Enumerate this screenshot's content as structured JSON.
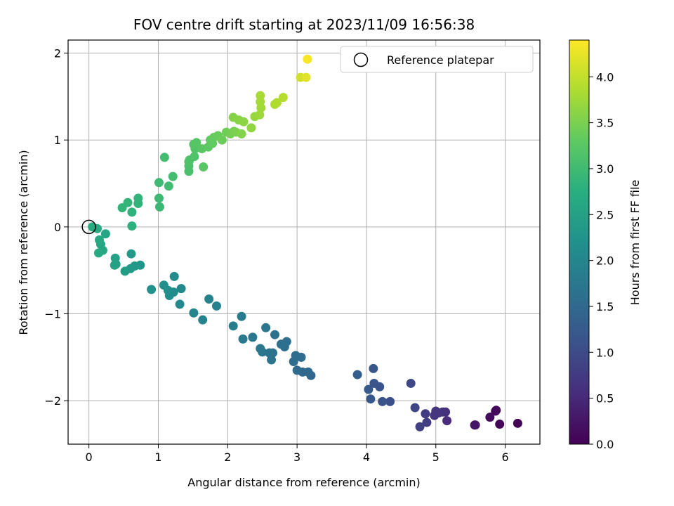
{
  "chart_data": {
    "type": "scatter",
    "title": "FOV centre drift starting at 2023/11/09 16:56:38",
    "xlabel": "Angular distance from reference (arcmin)",
    "ylabel": "Rotation from reference (arcmin)",
    "xlim": [
      -0.3,
      6.5
    ],
    "ylim": [
      -2.5,
      2.15
    ],
    "xticks": [
      0,
      1,
      2,
      3,
      4,
      5,
      6
    ],
    "yticks": [
      -2,
      -1,
      0,
      1,
      2
    ],
    "xtick_labels": [
      "0",
      "1",
      "2",
      "3",
      "4",
      "5",
      "6"
    ],
    "ytick_labels": [
      "−2",
      "−1",
      "0",
      "1",
      "2"
    ],
    "grid": true,
    "legend": {
      "position": "top-right",
      "entries": [
        "Reference platepar"
      ]
    },
    "reference_point": {
      "x": 0.0,
      "y": 0.0
    },
    "colorbar": {
      "label": "Hours from first FF file",
      "range": [
        0,
        4.4
      ],
      "ticks": [
        0,
        0.5,
        1,
        1.5,
        2,
        2.5,
        3,
        3.5,
        4
      ],
      "tick_labels": [
        "0.0",
        "0.5",
        "1.0",
        "1.5",
        "2.0",
        "2.5",
        "3.0",
        "3.5",
        "4.0"
      ],
      "colormap": "viridis"
    },
    "points": [
      {
        "x": 6.18,
        "y": -2.26,
        "c": 0.02
      },
      {
        "x": 5.92,
        "y": -2.27,
        "c": 0.05
      },
      {
        "x": 5.87,
        "y": -2.11,
        "c": 0.08
      },
      {
        "x": 5.86,
        "y": -2.12,
        "c": 0.1
      },
      {
        "x": 5.78,
        "y": -2.19,
        "c": 0.14
      },
      {
        "x": 5.56,
        "y": -2.28,
        "c": 0.22
      },
      {
        "x": 5.57,
        "y": -2.28,
        "c": 0.26
      },
      {
        "x": 5.16,
        "y": -2.23,
        "c": 0.55
      },
      {
        "x": 5.14,
        "y": -2.13,
        "c": 0.6
      },
      {
        "x": 5.1,
        "y": -2.13,
        "c": 0.62
      },
      {
        "x": 5.04,
        "y": -2.14,
        "c": 0.66
      },
      {
        "x": 5.0,
        "y": -2.12,
        "c": 0.68
      },
      {
        "x": 4.98,
        "y": -2.17,
        "c": 0.7
      },
      {
        "x": 4.85,
        "y": -2.15,
        "c": 0.78
      },
      {
        "x": 4.87,
        "y": -2.25,
        "c": 0.8
      },
      {
        "x": 4.77,
        "y": -2.3,
        "c": 0.84
      },
      {
        "x": 4.7,
        "y": -2.08,
        "c": 0.9
      },
      {
        "x": 4.64,
        "y": -1.8,
        "c": 0.95
      },
      {
        "x": 4.34,
        "y": -2.01,
        "c": 1.05
      },
      {
        "x": 4.23,
        "y": -2.01,
        "c": 1.1
      },
      {
        "x": 4.19,
        "y": -1.84,
        "c": 1.12
      },
      {
        "x": 4.11,
        "y": -1.8,
        "c": 1.15
      },
      {
        "x": 4.1,
        "y": -1.63,
        "c": 1.17
      },
      {
        "x": 4.06,
        "y": -1.98,
        "c": 1.2
      },
      {
        "x": 4.03,
        "y": -1.87,
        "c": 1.22
      },
      {
        "x": 3.87,
        "y": -1.7,
        "c": 1.3
      },
      {
        "x": 3.2,
        "y": -1.71,
        "c": 1.45
      },
      {
        "x": 3.16,
        "y": -1.67,
        "c": 1.47
      },
      {
        "x": 3.08,
        "y": -1.67,
        "c": 1.5
      },
      {
        "x": 3.0,
        "y": -1.65,
        "c": 1.52
      },
      {
        "x": 3.06,
        "y": -1.5,
        "c": 1.54
      },
      {
        "x": 2.98,
        "y": -1.48,
        "c": 1.55
      },
      {
        "x": 2.95,
        "y": -1.55,
        "c": 1.56
      },
      {
        "x": 2.85,
        "y": -1.32,
        "c": 1.58
      },
      {
        "x": 2.82,
        "y": -1.38,
        "c": 1.6
      },
      {
        "x": 2.77,
        "y": -1.35,
        "c": 1.62
      },
      {
        "x": 2.68,
        "y": -1.24,
        "c": 1.63
      },
      {
        "x": 2.65,
        "y": -1.45,
        "c": 1.65
      },
      {
        "x": 2.63,
        "y": -1.53,
        "c": 1.66
      },
      {
        "x": 2.6,
        "y": -1.45,
        "c": 1.67
      },
      {
        "x": 2.55,
        "y": -1.16,
        "c": 1.7
      },
      {
        "x": 2.5,
        "y": -1.44,
        "c": 1.72
      },
      {
        "x": 2.47,
        "y": -1.4,
        "c": 1.73
      },
      {
        "x": 2.36,
        "y": -1.27,
        "c": 1.76
      },
      {
        "x": 2.22,
        "y": -1.29,
        "c": 1.8
      },
      {
        "x": 2.2,
        "y": -1.03,
        "c": 1.82
      },
      {
        "x": 2.08,
        "y": -1.14,
        "c": 1.85
      },
      {
        "x": 1.84,
        "y": -0.91,
        "c": 1.9
      },
      {
        "x": 1.73,
        "y": -0.83,
        "c": 1.93
      },
      {
        "x": 1.64,
        "y": -1.07,
        "c": 1.96
      },
      {
        "x": 1.51,
        "y": -0.99,
        "c": 2.0
      },
      {
        "x": 1.33,
        "y": -0.71,
        "c": 2.05
      },
      {
        "x": 1.31,
        "y": -0.89,
        "c": 2.06
      },
      {
        "x": 1.23,
        "y": -0.57,
        "c": 2.1
      },
      {
        "x": 1.22,
        "y": -0.75,
        "c": 2.12
      },
      {
        "x": 1.16,
        "y": -0.79,
        "c": 2.14
      },
      {
        "x": 1.14,
        "y": -0.73,
        "c": 2.16
      },
      {
        "x": 1.08,
        "y": -0.67,
        "c": 2.18
      },
      {
        "x": 0.9,
        "y": -0.72,
        "c": 2.22
      },
      {
        "x": 0.74,
        "y": -0.44,
        "c": 2.3
      },
      {
        "x": 0.66,
        "y": -0.45,
        "c": 2.33
      },
      {
        "x": 0.6,
        "y": -0.48,
        "c": 2.36
      },
      {
        "x": 0.61,
        "y": -0.31,
        "c": 2.38
      },
      {
        "x": 0.52,
        "y": -0.51,
        "c": 2.42
      },
      {
        "x": 0.39,
        "y": -0.43,
        "c": 2.5
      },
      {
        "x": 0.38,
        "y": -0.36,
        "c": 2.52
      },
      {
        "x": 0.37,
        "y": -0.44,
        "c": 2.53
      },
      {
        "x": 0.24,
        "y": -0.08,
        "c": 2.58
      },
      {
        "x": 0.2,
        "y": -0.27,
        "c": 2.6
      },
      {
        "x": 0.17,
        "y": -0.2,
        "c": 2.62
      },
      {
        "x": 0.15,
        "y": -0.15,
        "c": 2.64
      },
      {
        "x": 0.14,
        "y": -0.3,
        "c": 2.65
      },
      {
        "x": 0.12,
        "y": -0.02,
        "c": 2.67
      },
      {
        "x": 0.05,
        "y": 0.0,
        "c": 2.7
      },
      {
        "x": 0.62,
        "y": 0.01,
        "c": 2.8
      },
      {
        "x": 0.62,
        "y": 0.17,
        "c": 2.82
      },
      {
        "x": 0.71,
        "y": 0.27,
        "c": 2.84
      },
      {
        "x": 0.71,
        "y": 0.33,
        "c": 2.85
      },
      {
        "x": 0.56,
        "y": 0.28,
        "c": 2.87
      },
      {
        "x": 0.48,
        "y": 0.22,
        "c": 2.88
      },
      {
        "x": 1.02,
        "y": 0.23,
        "c": 2.95
      },
      {
        "x": 1.01,
        "y": 0.33,
        "c": 2.97
      },
      {
        "x": 1.01,
        "y": 0.51,
        "c": 2.98
      },
      {
        "x": 1.15,
        "y": 0.47,
        "c": 3.0
      },
      {
        "x": 1.21,
        "y": 0.58,
        "c": 3.02
      },
      {
        "x": 1.09,
        "y": 0.8,
        "c": 3.04
      },
      {
        "x": 1.44,
        "y": 0.64,
        "c": 3.1
      },
      {
        "x": 1.44,
        "y": 0.7,
        "c": 3.12
      },
      {
        "x": 1.44,
        "y": 0.75,
        "c": 3.13
      },
      {
        "x": 1.45,
        "y": 0.77,
        "c": 3.14
      },
      {
        "x": 1.52,
        "y": 0.81,
        "c": 3.16
      },
      {
        "x": 1.53,
        "y": 0.9,
        "c": 3.18
      },
      {
        "x": 1.51,
        "y": 0.95,
        "c": 3.2
      },
      {
        "x": 1.55,
        "y": 0.97,
        "c": 3.22
      },
      {
        "x": 1.65,
        "y": 0.69,
        "c": 3.24
      },
      {
        "x": 1.63,
        "y": 0.9,
        "c": 3.26
      },
      {
        "x": 1.72,
        "y": 0.92,
        "c": 3.28
      },
      {
        "x": 1.75,
        "y": 1.0,
        "c": 3.3
      },
      {
        "x": 1.78,
        "y": 0.96,
        "c": 3.32
      },
      {
        "x": 1.8,
        "y": 1.03,
        "c": 3.34
      },
      {
        "x": 1.86,
        "y": 1.05,
        "c": 3.36
      },
      {
        "x": 1.92,
        "y": 1.0,
        "c": 3.4
      },
      {
        "x": 1.98,
        "y": 1.09,
        "c": 3.42
      },
      {
        "x": 2.04,
        "y": 1.07,
        "c": 3.45
      },
      {
        "x": 2.09,
        "y": 1.1,
        "c": 3.48
      },
      {
        "x": 2.12,
        "y": 1.09,
        "c": 3.5
      },
      {
        "x": 2.2,
        "y": 1.07,
        "c": 3.55
      },
      {
        "x": 2.08,
        "y": 1.26,
        "c": 3.57
      },
      {
        "x": 2.16,
        "y": 1.23,
        "c": 3.6
      },
      {
        "x": 2.23,
        "y": 1.21,
        "c": 3.62
      },
      {
        "x": 2.34,
        "y": 1.14,
        "c": 3.65
      },
      {
        "x": 2.39,
        "y": 1.27,
        "c": 3.7
      },
      {
        "x": 2.46,
        "y": 1.29,
        "c": 3.73
      },
      {
        "x": 2.48,
        "y": 1.37,
        "c": 3.76
      },
      {
        "x": 2.47,
        "y": 1.44,
        "c": 3.78
      },
      {
        "x": 2.47,
        "y": 1.51,
        "c": 3.8
      },
      {
        "x": 2.68,
        "y": 1.41,
        "c": 3.85
      },
      {
        "x": 2.71,
        "y": 1.43,
        "c": 3.87
      },
      {
        "x": 2.8,
        "y": 1.49,
        "c": 3.9
      },
      {
        "x": 3.05,
        "y": 1.72,
        "c": 4.1
      },
      {
        "x": 3.13,
        "y": 1.72,
        "c": 4.2
      },
      {
        "x": 3.15,
        "y": 1.93,
        "c": 4.35
      }
    ]
  }
}
